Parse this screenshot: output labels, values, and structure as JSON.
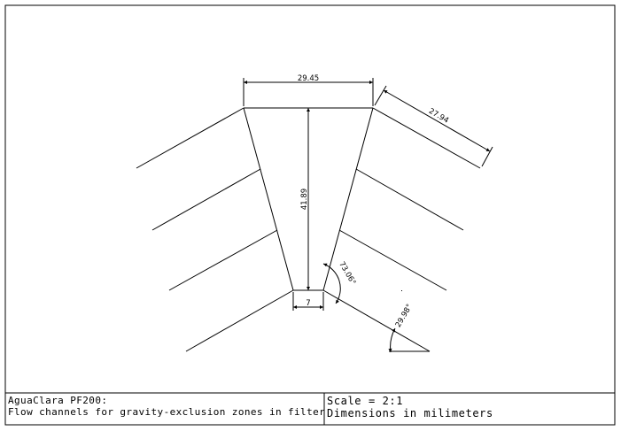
{
  "title_block": {
    "project": "AguaClara PF200:",
    "description": "Flow channels for gravity-exclusion zones in filter",
    "scale": "Scale = 2:1",
    "units_note": "Dimensions in milimeters"
  },
  "dimensions": {
    "top_width": "29.45",
    "plate_length": "27.94",
    "height": "41.89",
    "bottom_width": "7",
    "wall_angle": "73.06°",
    "plate_angle": "29.98°"
  },
  "colors": {
    "line": "#000000",
    "background": "#ffffff"
  }
}
